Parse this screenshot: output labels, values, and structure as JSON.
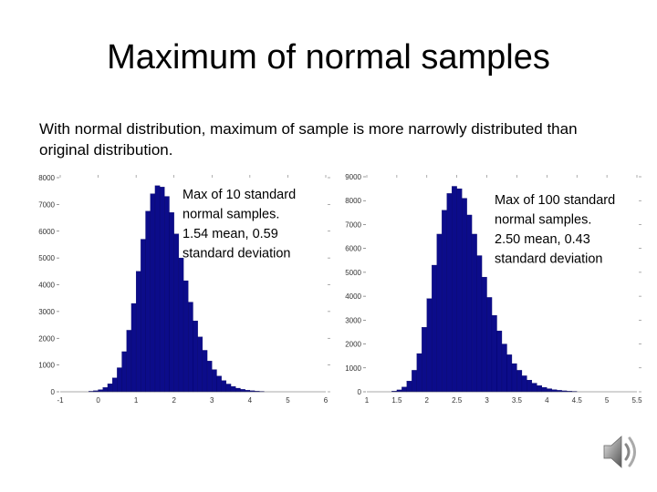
{
  "slide": {
    "title": "Maximum of normal samples",
    "body": "With normal distribution, maximum of sample is more narrowly distributed than original distribution."
  },
  "icons": {
    "speaker": "speaker-icon"
  },
  "colors": {
    "bars": "#0c0c8a",
    "bar_edge": "#000060"
  },
  "chart_data": [
    {
      "type": "bar",
      "title": "",
      "xlabel": "",
      "ylabel": "",
      "annotation": [
        "Max of 10 standard",
        "normal samples.",
        "1.54 mean, 0.59",
        "standard deviation"
      ],
      "xlim": [
        -1,
        6
      ],
      "ylim": [
        0,
        8000
      ],
      "x_ticks": [
        -1,
        0,
        1,
        2,
        3,
        4,
        5,
        6
      ],
      "y_ticks": [
        0,
        1000,
        2000,
        3000,
        4000,
        5000,
        6000,
        7000,
        8000
      ],
      "bin_width": 0.125,
      "x": [
        -0.1875,
        -0.0625,
        0.0625,
        0.1875,
        0.3125,
        0.4375,
        0.5625,
        0.6875,
        0.8125,
        0.9375,
        1.0625,
        1.1875,
        1.3125,
        1.4375,
        1.5625,
        1.6875,
        1.8125,
        1.9375,
        2.0625,
        2.1875,
        2.3125,
        2.4375,
        2.5625,
        2.6875,
        2.8125,
        2.9375,
        3.0625,
        3.1875,
        3.3125,
        3.4375,
        3.5625,
        3.6875,
        3.8125,
        3.9375,
        4.0625,
        4.1875,
        4.3125
      ],
      "values": [
        20,
        40,
        80,
        160,
        300,
        520,
        900,
        1500,
        2300,
        3300,
        4500,
        5700,
        6750,
        7400,
        7700,
        7650,
        7300,
        6700,
        5900,
        5000,
        4150,
        3350,
        2650,
        2050,
        1550,
        1150,
        830,
        590,
        420,
        290,
        200,
        135,
        90,
        60,
        40,
        25,
        15
      ]
    },
    {
      "type": "bar",
      "title": "",
      "xlabel": "",
      "ylabel": "",
      "annotation": [
        "Max of 100 standard",
        "normal samples.",
        "2.50 mean, 0.43",
        "standard deviation"
      ],
      "xlim": [
        1,
        5.5
      ],
      "ylim": [
        0,
        9000
      ],
      "x_ticks": [
        1,
        1.5,
        2,
        2.5,
        3,
        3.5,
        4,
        4.5,
        5,
        5.5
      ],
      "y_ticks": [
        0,
        1000,
        2000,
        3000,
        4000,
        5000,
        6000,
        7000,
        8000,
        9000
      ],
      "bin_width": 0.0833,
      "x": [
        1.458,
        1.542,
        1.625,
        1.708,
        1.792,
        1.875,
        1.958,
        2.042,
        2.125,
        2.208,
        2.292,
        2.375,
        2.458,
        2.542,
        2.625,
        2.708,
        2.792,
        2.875,
        2.958,
        3.042,
        3.125,
        3.208,
        3.292,
        3.375,
        3.458,
        3.542,
        3.625,
        3.708,
        3.792,
        3.875,
        3.958,
        4.042,
        4.125,
        4.208,
        4.292,
        4.375,
        4.458
      ],
      "values": [
        30,
        80,
        200,
        450,
        900,
        1600,
        2700,
        3900,
        5300,
        6600,
        7600,
        8300,
        8600,
        8500,
        8100,
        7400,
        6600,
        5700,
        4800,
        3950,
        3200,
        2550,
        2000,
        1550,
        1180,
        900,
        670,
        490,
        360,
        260,
        185,
        130,
        90,
        62,
        42,
        28,
        18
      ]
    }
  ]
}
